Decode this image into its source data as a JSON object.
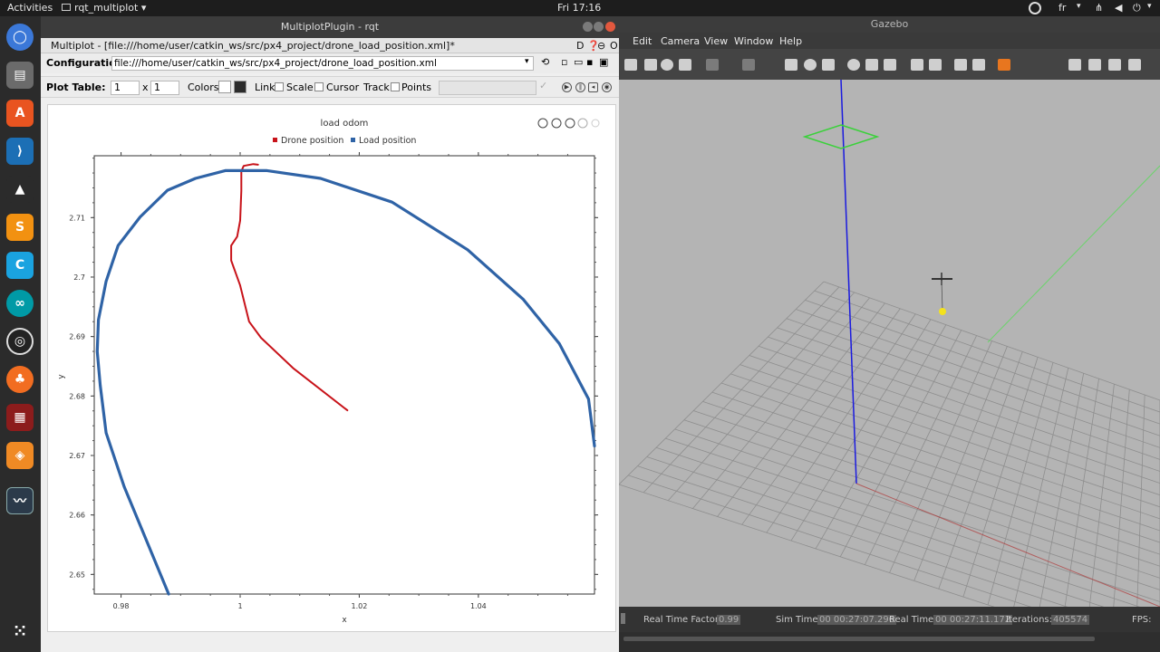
{
  "topbar": {
    "activities": "Activities",
    "app_menu": "rqt_multiplot",
    "clock": "Fri 17:16",
    "language": "fr"
  },
  "rqt": {
    "window_title": "MultiplotPlugin - rqt",
    "subtitle": "Multiplot - [file:///home/user/catkin_ws/src/px4_project/drone_load_position.xml]*",
    "config_label": "Configuration:",
    "config_value": "file:///home/user/catkin_ws/src/px4_project/drone_load_position.xml",
    "plot_table_label": "Plot Table:",
    "rows": "1",
    "x_sep": "x",
    "cols": "1",
    "colors_label": "Colors",
    "link_label": "Link",
    "scale_label": "Scale",
    "cursor_label": "Cursor",
    "track_label": "Track",
    "points_label": "Points"
  },
  "chart_data": {
    "type": "line",
    "title": "load odom",
    "xlabel": "x",
    "ylabel": "y",
    "xlim": [
      0.9755,
      1.0595
    ],
    "ylim": [
      2.6467,
      2.7204
    ],
    "xticks": [
      0.98,
      1,
      1.02,
      1.04
    ],
    "yticks": [
      2.65,
      2.66,
      2.67,
      2.68,
      2.69,
      2.7,
      2.71
    ],
    "legend_position": "top",
    "grid": false,
    "series": [
      {
        "name": "Drone position",
        "color": "#c8131a",
        "points": [
          [
            1.018,
            2.6776
          ],
          [
            1.009,
            2.6846
          ],
          [
            1.0035,
            2.6898
          ],
          [
            1.0015,
            2.6925
          ],
          [
            1.0,
            2.6986
          ],
          [
            0.9985,
            2.7028
          ],
          [
            0.9985,
            2.7053
          ],
          [
            0.9995,
            2.7068
          ],
          [
            1.0,
            2.7095
          ],
          [
            1.0002,
            2.7145
          ],
          [
            1.0002,
            2.7178
          ],
          [
            1.0006,
            2.7187
          ],
          [
            1.0022,
            2.719
          ],
          [
            1.003,
            2.7189
          ]
        ]
      },
      {
        "name": "Load position",
        "color": "#2f63a6",
        "points": [
          [
            0.988,
            2.6467
          ],
          [
            0.9805,
            2.6648
          ],
          [
            0.9775,
            2.6738
          ],
          [
            0.9765,
            2.6818
          ],
          [
            0.976,
            2.6875
          ],
          [
            0.9762,
            2.6928
          ],
          [
            0.9775,
            2.6993
          ],
          [
            0.9795,
            2.7053
          ],
          [
            0.9832,
            2.7101
          ],
          [
            0.9878,
            2.7146
          ],
          [
            0.9925,
            2.7166
          ],
          [
            0.9975,
            2.7179
          ],
          [
            1.0045,
            2.7179
          ],
          [
            1.0135,
            2.7166
          ],
          [
            1.0255,
            2.7126
          ],
          [
            1.0382,
            2.7046
          ],
          [
            1.0475,
            2.6963
          ],
          [
            1.0536,
            2.6888
          ],
          [
            1.0585,
            2.6795
          ],
          [
            1.0595,
            2.6716
          ]
        ]
      }
    ]
  },
  "gazebo": {
    "window_title": "Gazebo",
    "menu": [
      "Edit",
      "Camera",
      "View",
      "Window",
      "Help"
    ],
    "real_time_factor_label": "Real Time Factor:",
    "real_time_factor": "0.99",
    "sim_time_label": "Sim Time:",
    "sim_time": "00 00:27:07.296",
    "real_time_label": "Real Time:",
    "real_time": "00 00:27:11.172",
    "iterations_label": "Iterations:",
    "iterations": "405574",
    "fps_label": "FPS:"
  }
}
